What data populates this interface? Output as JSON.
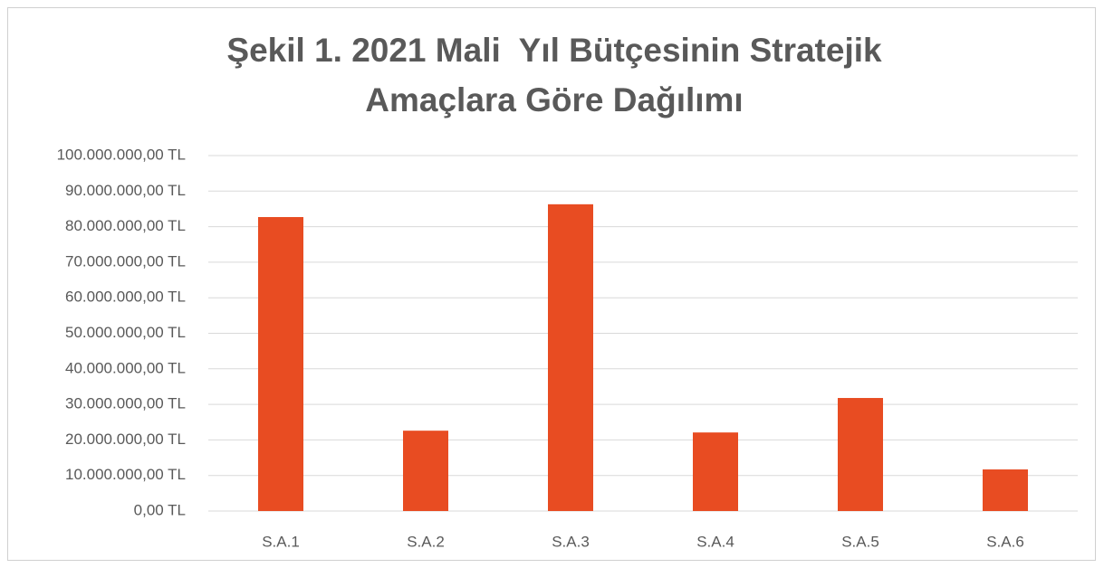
{
  "chart_data": {
    "type": "bar",
    "title": [
      "Şekil 1. 2021 Mali  Yıl Bütçesinin Stratejik",
      "Amaçlara Göre Dağılımı"
    ],
    "categories": [
      "S.A.1",
      "S.A.2",
      "S.A.3",
      "S.A.4",
      "S.A.5",
      "S.A.6"
    ],
    "values": [
      82700000,
      22600000,
      86300000,
      22100000,
      31800000,
      11700000
    ],
    "color": "#e84c22",
    "ylim": [
      0,
      100000000
    ],
    "yticks": [
      {
        "value": 0,
        "label": "0,00 TL"
      },
      {
        "value": 10000000,
        "label": "10.000.000,00 TL"
      },
      {
        "value": 20000000,
        "label": "20.000.000,00 TL"
      },
      {
        "value": 30000000,
        "label": "30.000.000,00 TL"
      },
      {
        "value": 40000000,
        "label": "40.000.000,00 TL"
      },
      {
        "value": 50000000,
        "label": "50.000.000,00 TL"
      },
      {
        "value": 60000000,
        "label": "60.000.000,00 TL"
      },
      {
        "value": 70000000,
        "label": "70.000.000,00 TL"
      },
      {
        "value": 80000000,
        "label": "80.000.000,00 TL"
      },
      {
        "value": 90000000,
        "label": "90.000.000,00 TL"
      },
      {
        "value": 100000000,
        "label": "100.000.000,00 TL"
      }
    ],
    "grid": true
  }
}
